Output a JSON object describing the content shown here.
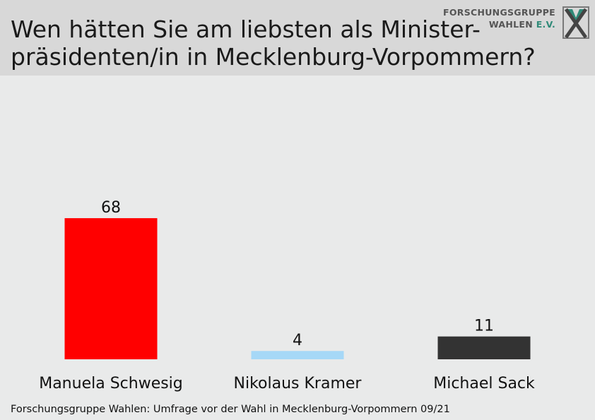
{
  "header": {
    "title_line1": "Wen hätten Sie am liebsten als Minister-",
    "title_line2": "präsidenten/in in Mecklenburg-Vorpommern?"
  },
  "logo": {
    "line1": "FORSCHUNGSGRUPPE",
    "line2_main": "WAHLEN",
    "line2_accent": "E.V.",
    "accent_color": "#2f8a78",
    "text_color": "#555555"
  },
  "chart_data": {
    "type": "bar",
    "categories": [
      "Manuela Schwesig",
      "Nikolaus Kramer",
      "Michael Sack"
    ],
    "values": [
      68,
      4,
      11
    ],
    "colors": [
      "#ff0000",
      "#a6d8f7",
      "#333333"
    ],
    "ylim": [
      0,
      100
    ],
    "grid": false,
    "legend": "none"
  },
  "footer": {
    "source": "Forschungsgruppe Wahlen: Umfrage vor der Wahl in Mecklenburg-Vorpommern 09/21"
  }
}
